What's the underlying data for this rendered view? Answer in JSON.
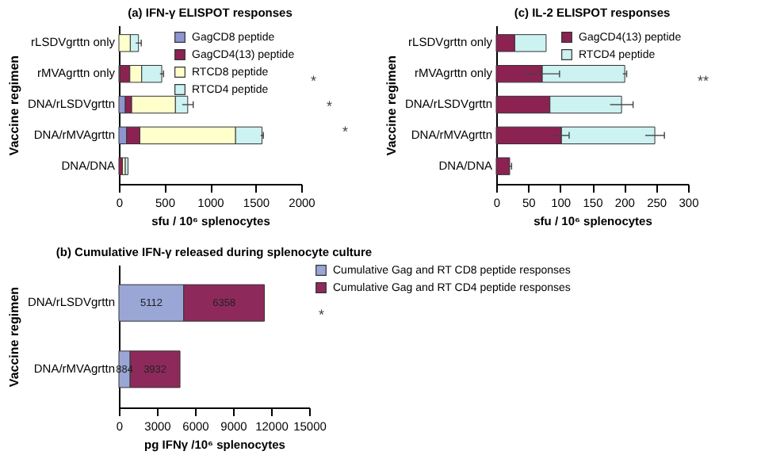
{
  "chart_data": [
    {
      "type": "bar",
      "orientation": "horizontal",
      "stacked": true,
      "title": "(a) IFN-γ ELISPOT responses",
      "xlabel": "sfu / 10⁶ splenocytes",
      "ylabel": "Vaccine regimen",
      "categories": [
        "rLSDVgrttn only",
        "rMVAgrttn only",
        "DNA/rLSDVgrttn",
        "DNA/rMVAgrttn",
        "DNA/DNA"
      ],
      "series": [
        {
          "name": "GagCD8 peptide",
          "color": "#8e96d0",
          "values": [
            0,
            10,
            70,
            85,
            0
          ]
        },
        {
          "name": "GagCD4(13) peptide",
          "color": "#8b2252",
          "values": [
            0,
            110,
            70,
            145,
            40
          ]
        },
        {
          "name": "RTCD8 peptide",
          "color": "#ffffcc",
          "values": [
            125,
            130,
            480,
            1050,
            30
          ]
        },
        {
          "name": "RTCD4 peptide",
          "color": "#ccf2f2",
          "values": [
            90,
            220,
            135,
            290,
            30
          ],
          "errors": [
            30,
            20,
            60,
            15,
            null
          ]
        }
      ],
      "xlim": [
        0,
        2000
      ],
      "xticks": [
        0,
        500,
        1000,
        1500,
        2000
      ],
      "legend": "top right",
      "annotations": [
        "*",
        "*",
        "*"
      ]
    },
    {
      "type": "bar",
      "orientation": "horizontal",
      "stacked": true,
      "title": "(c) IL-2 ELISPOT responses",
      "xlabel": "sfu / 10⁶ splenocytes",
      "ylabel": "Vaccine regimen",
      "categories": [
        "rLSDVgrttn only",
        "rMVAgrttn only",
        "DNA/rLSDVgrttn",
        "DNA/rMVAgrttn",
        "DNA/DNA"
      ],
      "series": [
        {
          "name": "GagCD4(13) peptide",
          "color": "#8b2252",
          "values": [
            29,
            72,
            84,
            102,
            21
          ],
          "errors": [
            null,
            27,
            null,
            12,
            3
          ]
        },
        {
          "name": "RTCD4 peptide",
          "color": "#ccf2f2",
          "values": [
            49,
            129,
            112,
            146,
            0
          ],
          "errors": [
            null,
            3,
            18,
            15,
            null
          ]
        }
      ],
      "xlim": [
        0,
        300
      ],
      "xticks": [
        0,
        50,
        100,
        150,
        200,
        250,
        300
      ],
      "legend": "top right",
      "annotations": [
        "**"
      ]
    },
    {
      "type": "bar",
      "orientation": "horizontal",
      "stacked": true,
      "title": "(b) Cumulative IFN-γ released during splenocyte culture",
      "xlabel": "pg IFNγ /10⁶ splenocytes",
      "ylabel": "Vaccine regimen",
      "categories": [
        "DNA/rLSDVgrttn",
        "DNA/rMVAgrttn"
      ],
      "series": [
        {
          "name": "Cumulative Gag and RT CD8 peptide responses",
          "color": "#9aa6d6",
          "values": [
            5112,
            884
          ]
        },
        {
          "name": "Cumulative Gag and RT CD4 peptide responses",
          "color": "#8e2a5b",
          "values": [
            6358,
            3932
          ]
        }
      ],
      "xlim": [
        0,
        15000
      ],
      "xticks": [
        0,
        3000,
        6000,
        9000,
        12000,
        15000
      ],
      "data_labels": true,
      "legend": "right",
      "annotations": [
        "*"
      ]
    }
  ]
}
